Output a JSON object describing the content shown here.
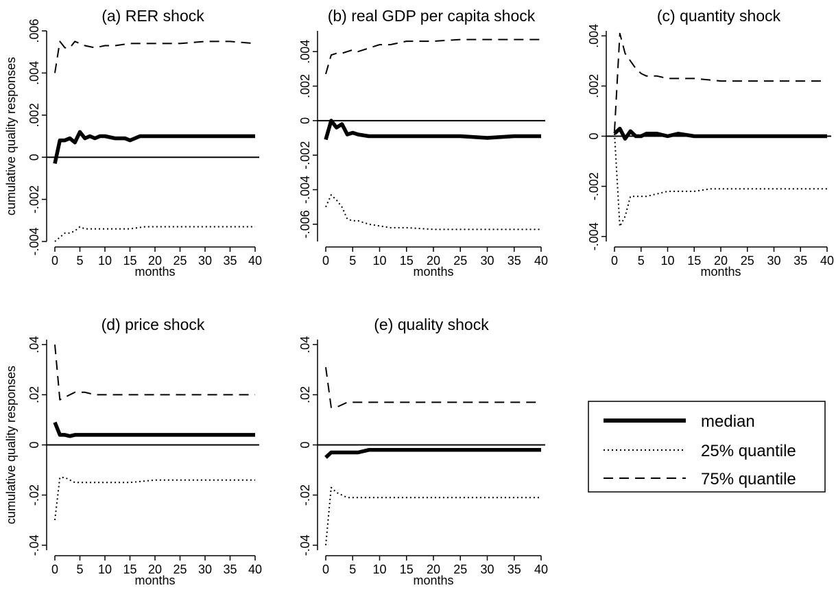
{
  "figure": {
    "legend": {
      "placement": "bottom-right",
      "entries": [
        {
          "label": "median",
          "style": "solid-thick"
        },
        {
          "label": "25% quantile",
          "style": "dotted"
        },
        {
          "label": "75% quantile",
          "style": "dashed"
        }
      ]
    }
  },
  "chart_data": [
    {
      "type": "line",
      "title": "(a) RER shock",
      "xlabel": "months",
      "ylabel": "cumulative quality responses",
      "xlim": [
        0,
        40
      ],
      "ylim": [
        -0.004,
        0.006
      ],
      "xticks": [
        0,
        5,
        10,
        15,
        20,
        25,
        30,
        35,
        40
      ],
      "yticks": [
        -0.004,
        -0.002,
        0,
        0.002,
        0.004,
        0.006
      ],
      "ytick_labels": [
        "-.004",
        "-.002",
        "0",
        ".002",
        ".004",
        ".006"
      ],
      "zero_line": true,
      "grid": false,
      "series": [
        {
          "name": "median",
          "style": "solid-thick",
          "x": [
            0,
            1,
            2,
            3,
            4,
            5,
            6,
            7,
            8,
            9,
            10,
            12,
            14,
            15,
            17,
            20,
            22,
            25,
            28,
            30,
            33,
            35,
            38,
            40
          ],
          "y": [
            -0.0003,
            0.0008,
            0.0008,
            0.0009,
            0.0007,
            0.0012,
            0.0009,
            0.001,
            0.0009,
            0.001,
            0.001,
            0.0009,
            0.0009,
            0.0008,
            0.001,
            0.001,
            0.001,
            0.001,
            0.001,
            0.001,
            0.001,
            0.001,
            0.001,
            0.001
          ]
        },
        {
          "name": "25% quantile",
          "style": "dotted",
          "x": [
            0,
            1,
            2,
            3,
            4,
            5,
            6,
            8,
            10,
            12,
            15,
            18,
            20,
            25,
            30,
            35,
            40
          ],
          "y": [
            -0.004,
            -0.0038,
            -0.0036,
            -0.0036,
            -0.0035,
            -0.0033,
            -0.0034,
            -0.0034,
            -0.0034,
            -0.0034,
            -0.0034,
            -0.0033,
            -0.0033,
            -0.0033,
            -0.0033,
            -0.0033,
            -0.0033
          ]
        },
        {
          "name": "75% quantile",
          "style": "dashed",
          "x": [
            0,
            1,
            2,
            3,
            4,
            5,
            6,
            8,
            10,
            12,
            15,
            20,
            25,
            30,
            35,
            40
          ],
          "y": [
            0.004,
            0.0055,
            0.0052,
            0.0052,
            0.0055,
            0.0054,
            0.0053,
            0.0052,
            0.0053,
            0.0053,
            0.0054,
            0.0054,
            0.0054,
            0.0055,
            0.0055,
            0.0054
          ]
        }
      ]
    },
    {
      "type": "line",
      "title": "(b) real GDP per capita shock",
      "xlabel": "months",
      "ylabel": "",
      "xlim": [
        0,
        40
      ],
      "ylim": [
        -0.007,
        0.0052
      ],
      "xticks": [
        0,
        5,
        10,
        15,
        20,
        25,
        30,
        35,
        40
      ],
      "yticks": [
        -0.006,
        -0.004,
        -0.002,
        0,
        0.002,
        0.004
      ],
      "ytick_labels": [
        "-.006",
        "-.004",
        "-.002",
        "0",
        ".002",
        ".004"
      ],
      "zero_line": true,
      "grid": false,
      "series": [
        {
          "name": "median",
          "style": "solid-thick",
          "x": [
            0,
            1,
            2,
            3,
            4,
            5,
            6,
            8,
            10,
            12,
            15,
            20,
            25,
            30,
            35,
            40
          ],
          "y": [
            -0.0011,
            0,
            -0.0004,
            -0.0002,
            -0.0008,
            -0.0007,
            -0.0008,
            -0.0009,
            -0.0009,
            -0.0009,
            -0.0009,
            -0.0009,
            -0.0009,
            -0.001,
            -0.0009,
            -0.0009
          ]
        },
        {
          "name": "25% quantile",
          "style": "dotted",
          "x": [
            0,
            1,
            2,
            3,
            4,
            5,
            6,
            8,
            10,
            12,
            15,
            20,
            25,
            30,
            35,
            40
          ],
          "y": [
            -0.005,
            -0.0043,
            -0.0046,
            -0.005,
            -0.0057,
            -0.0058,
            -0.0058,
            -0.006,
            -0.0061,
            -0.0062,
            -0.0062,
            -0.0063,
            -0.0063,
            -0.0063,
            -0.0063,
            -0.0063
          ]
        },
        {
          "name": "75% quantile",
          "style": "dashed",
          "x": [
            0,
            1,
            2,
            3,
            4,
            5,
            6,
            8,
            10,
            12,
            15,
            20,
            25,
            30,
            35,
            40
          ],
          "y": [
            0.0027,
            0.0038,
            0.0039,
            0.0039,
            0.004,
            0.0041,
            0.004,
            0.0042,
            0.0044,
            0.0044,
            0.0046,
            0.0046,
            0.0047,
            0.0047,
            0.0047,
            0.0047
          ]
        }
      ]
    },
    {
      "type": "line",
      "title": "(c) quantity shock",
      "xlabel": "months",
      "ylabel": "",
      "xlim": [
        0,
        40
      ],
      "ylim": [
        -0.0042,
        0.0042
      ],
      "xticks": [
        0,
        5,
        10,
        15,
        20,
        25,
        30,
        35,
        40
      ],
      "yticks": [
        -0.004,
        -0.002,
        0,
        0.002,
        0.004
      ],
      "ytick_labels": [
        "-.004",
        "-.002",
        "0",
        ".002",
        ".004"
      ],
      "zero_line": true,
      "grid": false,
      "series": [
        {
          "name": "median",
          "style": "solid-thick",
          "x": [
            0,
            1,
            2,
            3,
            4,
            5,
            6,
            8,
            10,
            12,
            15,
            20,
            25,
            30,
            35,
            40
          ],
          "y": [
            0.0001,
            0.0003,
            -0.0001,
            0.0002,
            0,
            0,
            0.0001,
            0.0001,
            0,
            0.0001,
            0,
            0,
            0,
            0,
            0,
            0
          ]
        },
        {
          "name": "25% quantile",
          "style": "dotted",
          "x": [
            0,
            1,
            2,
            3,
            4,
            5,
            6,
            8,
            10,
            12,
            15,
            18,
            20,
            25,
            30,
            35,
            40
          ],
          "y": [
            0.0001,
            -0.0036,
            -0.0032,
            -0.0024,
            -0.0024,
            -0.0024,
            -0.0024,
            -0.0023,
            -0.0022,
            -0.0022,
            -0.0022,
            -0.0021,
            -0.0021,
            -0.0021,
            -0.0021,
            -0.0021,
            -0.0021
          ]
        },
        {
          "name": "75% quantile",
          "style": "dashed",
          "x": [
            0,
            1,
            2,
            3,
            4,
            5,
            6,
            8,
            10,
            12,
            15,
            20,
            25,
            30,
            35,
            40
          ],
          "y": [
            0.0002,
            0.0041,
            0.0033,
            0.003,
            0.0027,
            0.0025,
            0.0024,
            0.0024,
            0.0023,
            0.0023,
            0.0023,
            0.0022,
            0.0022,
            0.0022,
            0.0022,
            0.0022
          ]
        }
      ]
    },
    {
      "type": "line",
      "title": "(d) price shock",
      "xlabel": "months",
      "ylabel": "cumulative quality responses",
      "xlim": [
        0,
        40
      ],
      "ylim": [
        -0.042,
        0.042
      ],
      "xticks": [
        0,
        5,
        10,
        15,
        20,
        25,
        30,
        35,
        40
      ],
      "yticks": [
        -0.04,
        -0.02,
        0,
        0.02,
        0.04
      ],
      "ytick_labels": [
        "-.04",
        "-.02",
        "0",
        ".02",
        ".04"
      ],
      "zero_line": true,
      "grid": false,
      "series": [
        {
          "name": "median",
          "style": "solid-thick",
          "x": [
            0,
            1,
            2,
            3,
            4,
            5,
            6,
            8,
            10,
            12,
            15,
            20,
            25,
            30,
            35,
            40
          ],
          "y": [
            0.009,
            0.004,
            0.004,
            0.0035,
            0.004,
            0.004,
            0.004,
            0.004,
            0.004,
            0.004,
            0.004,
            0.004,
            0.004,
            0.004,
            0.004,
            0.004
          ]
        },
        {
          "name": "25% quantile",
          "style": "dotted",
          "x": [
            0,
            1,
            2,
            3,
            4,
            5,
            6,
            8,
            10,
            12,
            15,
            20,
            25,
            30,
            35,
            40
          ],
          "y": [
            -0.03,
            -0.013,
            -0.013,
            -0.014,
            -0.015,
            -0.015,
            -0.015,
            -0.015,
            -0.015,
            -0.015,
            -0.015,
            -0.014,
            -0.014,
            -0.014,
            -0.014,
            -0.014
          ]
        },
        {
          "name": "75% quantile",
          "style": "dashed",
          "x": [
            0,
            1,
            2,
            3,
            4,
            5,
            6,
            8,
            10,
            12,
            15,
            20,
            25,
            30,
            35,
            40
          ],
          "y": [
            0.04,
            0.018,
            0.019,
            0.02,
            0.021,
            0.021,
            0.021,
            0.02,
            0.02,
            0.02,
            0.02,
            0.02,
            0.02,
            0.02,
            0.02,
            0.02
          ]
        }
      ]
    },
    {
      "type": "line",
      "title": "(e) quality shock",
      "xlabel": "months",
      "ylabel": "",
      "xlim": [
        0,
        40
      ],
      "ylim": [
        -0.042,
        0.042
      ],
      "xticks": [
        0,
        5,
        10,
        15,
        20,
        25,
        30,
        35,
        40
      ],
      "yticks": [
        -0.04,
        -0.02,
        0,
        0.02,
        0.04
      ],
      "ytick_labels": [
        "-.04",
        "-.02",
        "0",
        ".02",
        ".04"
      ],
      "zero_line": true,
      "grid": false,
      "series": [
        {
          "name": "median",
          "style": "solid-thick",
          "x": [
            0,
            1,
            2,
            3,
            4,
            5,
            6,
            8,
            10,
            12,
            15,
            20,
            25,
            30,
            35,
            40
          ],
          "y": [
            -0.005,
            -0.003,
            -0.003,
            -0.003,
            -0.003,
            -0.003,
            -0.003,
            -0.002,
            -0.002,
            -0.002,
            -0.002,
            -0.002,
            -0.002,
            -0.002,
            -0.002,
            -0.002
          ]
        },
        {
          "name": "25% quantile",
          "style": "dotted",
          "x": [
            0,
            1,
            2,
            3,
            4,
            5,
            6,
            8,
            10,
            12,
            15,
            20,
            25,
            30,
            35,
            40
          ],
          "y": [
            -0.04,
            -0.017,
            -0.019,
            -0.02,
            -0.021,
            -0.021,
            -0.021,
            -0.021,
            -0.021,
            -0.021,
            -0.021,
            -0.021,
            -0.021,
            -0.021,
            -0.021,
            -0.021
          ]
        },
        {
          "name": "75% quantile",
          "style": "dashed",
          "x": [
            0,
            1,
            2,
            3,
            4,
            5,
            6,
            8,
            10,
            12,
            15,
            20,
            25,
            30,
            35,
            40
          ],
          "y": [
            0.031,
            0.015,
            0.015,
            0.016,
            0.017,
            0.017,
            0.017,
            0.017,
            0.017,
            0.017,
            0.017,
            0.017,
            0.017,
            0.017,
            0.017,
            0.017
          ]
        }
      ]
    }
  ]
}
